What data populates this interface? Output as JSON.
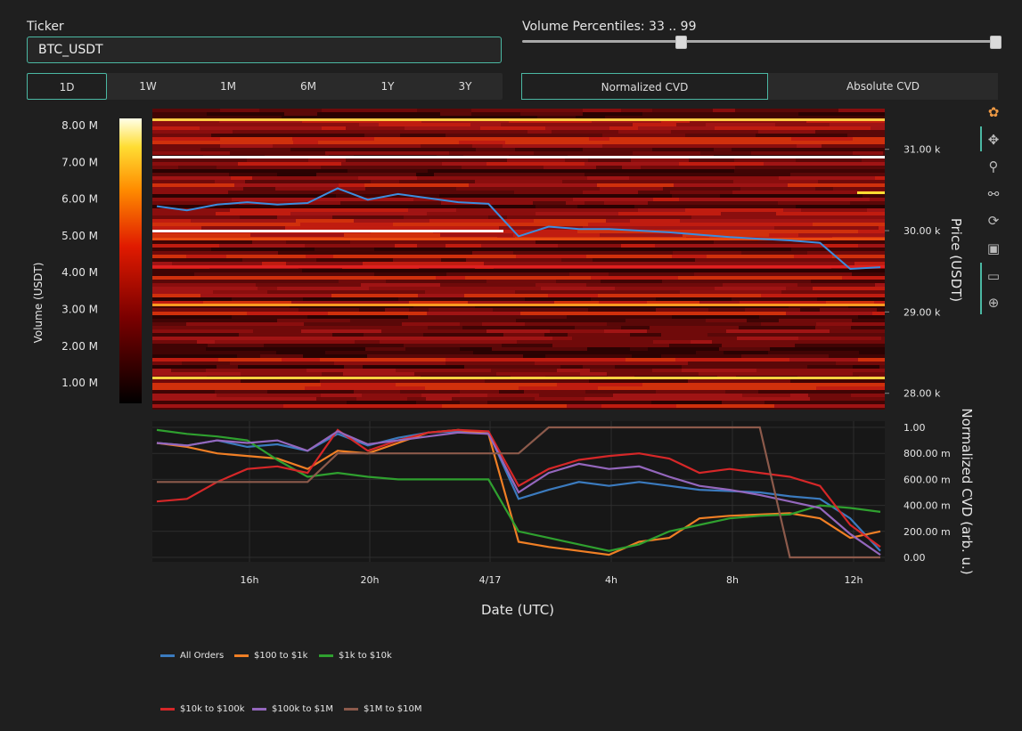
{
  "ticker": {
    "label": "Ticker",
    "value": "BTC_USDT"
  },
  "volume_percentiles": {
    "label": "Volume Percentiles: 33 .. 99",
    "low": 33,
    "high": 99
  },
  "ranges": [
    "1D",
    "1W",
    "1M",
    "6M",
    "1Y",
    "3Y"
  ],
  "range_selected": "1D",
  "cvd_modes": [
    "Normalized CVD",
    "Absolute CVD"
  ],
  "cvd_selected": "Normalized CVD",
  "colorbar": {
    "title": "Volume (USDT)",
    "ticks": [
      "8.00 M",
      "7.00 M",
      "6.00 M",
      "5.00 M",
      "4.00 M",
      "3.00 M",
      "2.00 M",
      "1.00 M"
    ]
  },
  "heatmap": {
    "price_axis_title": "Price (USDT)",
    "price_ticks": [
      "31.00 k",
      "30.00 k",
      "29.00 k",
      "28.00 k"
    ]
  },
  "cvd_axis": {
    "title": "Normalized CVD (arb. u.)",
    "ticks": [
      "1.00",
      "800.00 m",
      "600.00 m",
      "400.00 m",
      "200.00 m",
      "0.00"
    ]
  },
  "x_axis": {
    "title": "Date (UTC)",
    "ticks": [
      "16h",
      "20h",
      "4/17",
      "4h",
      "8h",
      "12h"
    ]
  },
  "tools": [
    "plotly-logo-icon",
    "pan-icon",
    "zoom-icon",
    "spike-lines-icon",
    "reset-axes-icon",
    "save-image-icon",
    "hover-closest-icon",
    "hover-compare-icon"
  ],
  "legend": [
    {
      "name": "All Orders",
      "color": "#3b7bbf"
    },
    {
      "name": "$100 to $1k",
      "color": "#f07f25"
    },
    {
      "name": "$1k to $10k",
      "color": "#2fa02f"
    },
    {
      "name": "$10k to $100k",
      "color": "#d62728"
    },
    {
      "name": "$100k to $1M",
      "color": "#9467bd"
    },
    {
      "name": "$1M to $10M",
      "color": "#8c5a4b"
    }
  ],
  "chart_data": {
    "type": "line",
    "title": "",
    "x": [
      "13h",
      "14h",
      "15h",
      "16h",
      "17h",
      "18h",
      "19h",
      "20h",
      "21h",
      "22h",
      "23h",
      "4/17",
      "1h",
      "2h",
      "3h",
      "4h",
      "5h",
      "6h",
      "7h",
      "8h",
      "9h",
      "10h",
      "11h",
      "12h",
      "12h30"
    ],
    "ylabel": "Normalized CVD (arb. u.)",
    "xlabel": "Date (UTC)",
    "ylim": [
      0,
      1
    ],
    "series": [
      {
        "name": "All Orders",
        "values": [
          0.88,
          0.86,
          0.9,
          0.85,
          0.87,
          0.82,
          0.95,
          0.86,
          0.92,
          0.96,
          0.97,
          0.96,
          0.45,
          0.52,
          0.58,
          0.55,
          0.58,
          0.55,
          0.52,
          0.51,
          0.5,
          0.47,
          0.45,
          0.3,
          0.05
        ]
      },
      {
        "name": "$100 to $1k",
        "values": [
          0.88,
          0.85,
          0.8,
          0.78,
          0.76,
          0.68,
          0.82,
          0.8,
          0.88,
          0.96,
          0.98,
          0.95,
          0.12,
          0.08,
          0.05,
          0.02,
          0.12,
          0.15,
          0.3,
          0.32,
          0.33,
          0.34,
          0.3,
          0.15,
          0.2
        ]
      },
      {
        "name": "$1k to $10k",
        "values": [
          0.98,
          0.95,
          0.93,
          0.9,
          0.75,
          0.62,
          0.65,
          0.62,
          0.6,
          0.6,
          0.6,
          0.6,
          0.2,
          0.15,
          0.1,
          0.05,
          0.1,
          0.2,
          0.25,
          0.3,
          0.32,
          0.33,
          0.4,
          0.38,
          0.35
        ]
      },
      {
        "name": "$10k to $100k",
        "values": [
          0.43,
          0.45,
          0.58,
          0.68,
          0.7,
          0.65,
          0.98,
          0.82,
          0.9,
          0.96,
          0.98,
          0.97,
          0.55,
          0.68,
          0.75,
          0.78,
          0.8,
          0.76,
          0.65,
          0.68,
          0.65,
          0.62,
          0.55,
          0.25,
          0.08
        ]
      },
      {
        "name": "$100k to $1M",
        "values": [
          0.88,
          0.86,
          0.9,
          0.88,
          0.9,
          0.82,
          0.97,
          0.87,
          0.9,
          0.93,
          0.96,
          0.95,
          0.5,
          0.65,
          0.72,
          0.68,
          0.7,
          0.62,
          0.55,
          0.52,
          0.48,
          0.43,
          0.38,
          0.18,
          0.02
        ]
      },
      {
        "name": "$1M to $10M",
        "values": [
          0.58,
          0.58,
          0.58,
          0.58,
          0.58,
          0.58,
          0.8,
          0.8,
          0.8,
          0.8,
          0.8,
          0.8,
          0.8,
          1.0,
          1.0,
          1.0,
          1.0,
          1.0,
          1.0,
          1.0,
          1.0,
          0.0,
          0.0,
          0.0,
          0.0
        ]
      }
    ],
    "price_line": {
      "name": "Price",
      "y_label": "Price (USDT)",
      "ylim": [
        27800,
        31500
      ],
      "values": [
        30300,
        30250,
        30320,
        30350,
        30320,
        30340,
        30520,
        30380,
        30450,
        30400,
        30350,
        30330,
        29930,
        30050,
        30020,
        30020,
        30000,
        29980,
        29950,
        29920,
        29900,
        29880,
        29850,
        29530,
        29550
      ]
    }
  }
}
